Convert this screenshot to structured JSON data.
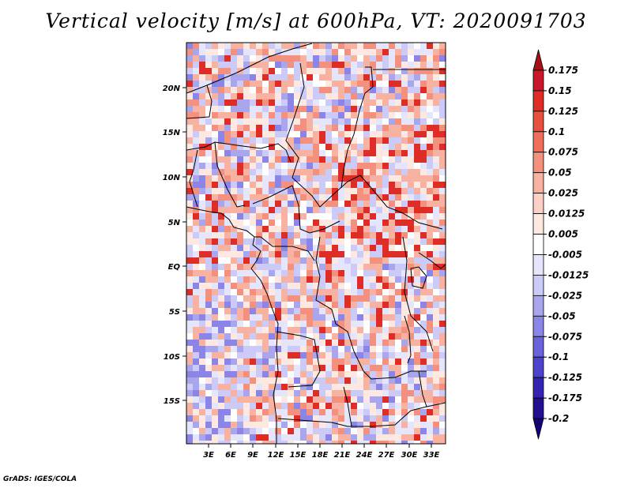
{
  "title": "Vertical velocity [m/s] at 600hPa, VT: 2020091703",
  "footer": "GrADS: IGES/COLA",
  "map": {
    "lat_labels": [
      "20N",
      "15N",
      "10N",
      "5N",
      "EQ",
      "5S",
      "10S",
      "15S"
    ],
    "lon_labels": [
      "3E",
      "6E",
      "9E",
      "12E",
      "15E",
      "18E",
      "21E",
      "24E",
      "27E",
      "30E",
      "33E"
    ]
  },
  "colorbar": {
    "levels": [
      "0.175",
      "0.15",
      "0.125",
      "0.1",
      "0.075",
      "0.05",
      "0.025",
      "0.0125",
      "0.005",
      "-0.005",
      "-0.0125",
      "-0.025",
      "-0.05",
      "-0.075",
      "-0.1",
      "-0.125",
      "-0.175",
      "-0.2"
    ],
    "colors": [
      "#a50f15",
      "#c8182a",
      "#de2d26",
      "#e8503e",
      "#ef6f5c",
      "#f4907e",
      "#f8b2a2",
      "#fbd0c5",
      "#fde8e2",
      "#ffffff",
      "#e5e5fb",
      "#cccaf6",
      "#aaa6ee",
      "#8a85e6",
      "#6b62dc",
      "#4e41cc",
      "#3524b2",
      "#221091",
      "#140577"
    ]
  }
}
